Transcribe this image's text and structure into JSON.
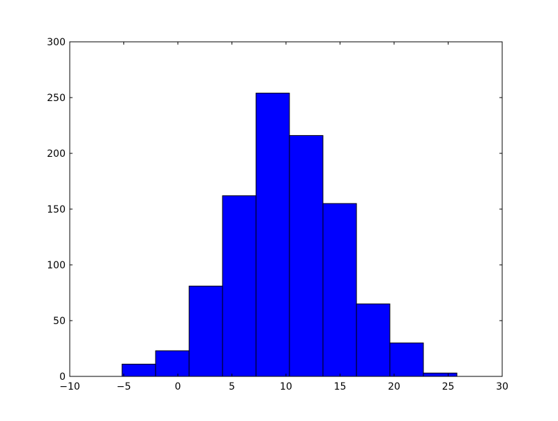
{
  "chart_data": {
    "type": "bar",
    "subtype": "histogram",
    "title": "",
    "xlabel": "",
    "ylabel": "",
    "xlim": [
      -10,
      30
    ],
    "ylim": [
      0,
      300
    ],
    "grid": false,
    "bar_color": "#0000ff",
    "edge_color": "#000000",
    "bin_edges": [
      -5.16,
      -2.06,
      1.04,
      4.13,
      7.23,
      10.32,
      13.42,
      16.52,
      19.61,
      22.71,
      25.81
    ],
    "values": [
      11,
      23,
      81,
      162,
      254,
      216,
      155,
      65,
      30,
      3
    ],
    "x_ticks": [
      -10,
      -5,
      0,
      5,
      10,
      15,
      20,
      25,
      30
    ],
    "x_tick_labels": [
      "−10",
      "−5",
      "0",
      "5",
      "10",
      "15",
      "20",
      "25",
      "30"
    ],
    "y_ticks": [
      0,
      50,
      100,
      150,
      200,
      250,
      300
    ],
    "y_tick_labels": [
      "0",
      "50",
      "100",
      "150",
      "200",
      "250",
      "300"
    ]
  }
}
